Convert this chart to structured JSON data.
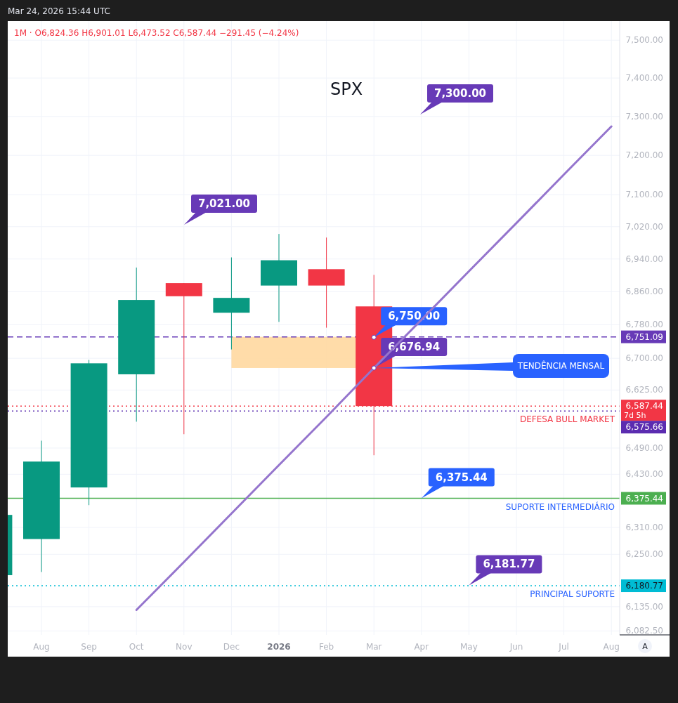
{
  "chart_data": {
    "type": "candlestick",
    "title": "SPX",
    "subtitle": "1M · O6,824.36 H6,901.01 L6,473.52 C6,587.44 −291.45 (−4.24%)",
    "categories": [
      null,
      "Aug",
      "Sep",
      "Oct",
      "Nov",
      "Dec",
      "2026",
      "Feb",
      "Mar",
      "Apr",
      "May",
      "Jun",
      "Jul",
      "Aug"
    ],
    "ohlc": [
      [
        6204,
        6427,
        6201,
        6338
      ],
      [
        6284,
        6507,
        6211,
        6459
      ],
      [
        6400,
        6696,
        6360,
        6688
      ],
      [
        6662,
        6919,
        6551,
        6840
      ],
      [
        6881,
        6881,
        6522,
        6849
      ],
      [
        6809,
        6944,
        6721,
        6845
      ],
      [
        6875,
        7002,
        6787,
        6937
      ],
      [
        6915,
        6993,
        6773,
        6875
      ],
      [
        6824.36,
        6901.01,
        6473.52,
        6587.44
      ],
      null,
      null,
      null,
      null,
      null
    ],
    "colors": [
      "#089981",
      "#089981",
      "#089981",
      "#089981",
      "#f23645",
      "#089981",
      "#089981",
      "#f23645",
      "#f23645",
      null,
      null,
      null,
      null,
      null
    ],
    "series": [
      {
        "type": "line",
        "color": "#9575cd",
        "values": [
          null,
          null,
          null,
          6128,
          6233,
          6341,
          6451,
          6562,
          6676.94,
          6792,
          6910,
          7029,
          7151,
          7274
        ]
      }
    ],
    "log": "y",
    "ylim": [
      6074,
      7551
    ],
    "yticks": [
      {
        "value": 7500,
        "label": "7,500.00"
      },
      {
        "value": 7400,
        "label": "7,400.00"
      },
      {
        "value": 7300,
        "label": "7,300.00"
      },
      {
        "value": 7200,
        "label": "7,200.00"
      },
      {
        "value": 7100,
        "label": "7,100.00"
      },
      {
        "value": 7020,
        "label": "7,020.00"
      },
      {
        "value": 6940,
        "label": "6,940.00"
      },
      {
        "value": 6860,
        "label": "6,860.00"
      },
      {
        "value": 6780,
        "label": "6,780.00"
      },
      {
        "value": 6700,
        "label": "6,700.00"
      },
      {
        "value": 6625,
        "label": "6,625.00"
      },
      {
        "value": 6490,
        "label": "6,490.00"
      },
      {
        "value": 6430,
        "label": "6,430.00"
      },
      {
        "value": 6310,
        "label": "6,310.00"
      },
      {
        "value": 6250,
        "label": "6,250.00"
      },
      {
        "value": 6135,
        "label": "6,135.00"
      },
      {
        "value": 6082.5,
        "label": "6,082.50"
      }
    ],
    "grid": true,
    "ref_lines": [
      {
        "axis": "y",
        "value": 6751.09,
        "label": "6,751.09",
        "color": "#673ab7",
        "line_style": "dashed"
      },
      {
        "axis": "y",
        "value": 6587.44,
        "label": "6,587.44",
        "color": "#f23645",
        "line_style": "dotted"
      },
      {
        "axis": "y",
        "value": 6575.66,
        "label": "6,575.66",
        "color": "#5b2cb0",
        "line_style": "dotted"
      },
      {
        "axis": "y",
        "value": 6375.44,
        "label": "6,375.44",
        "color": "#4caf50",
        "line_style": "solid"
      },
      {
        "axis": "y",
        "value": 6180.77,
        "label": "6,180.77",
        "color": "#00bcd4",
        "line_style": "dotted"
      }
    ],
    "bands": [
      {
        "axis": "y",
        "from": 6676.94,
        "to": 6751.09,
        "color": "#ffd8a0"
      }
    ],
    "annotations": [
      "Mar 24, 2026 15:44 UTC",
      "A",
      "7d 5h",
      "7,300.00",
      "7,021.00",
      {
        "text": "6,750.00",
        "x": "Mar",
        "y": 6750
      },
      {
        "text": "6,676.94",
        "x": "Mar",
        "y": 6676.94
      },
      {
        "text": "TENDÊNCIA MENSAL",
        "x": "Mar",
        "y": 6676.94
      },
      {
        "text": "6,375.44",
        "x": "Apr",
        "y": 6375.44
      },
      {
        "text": "6,181.77",
        "x": "May",
        "y": 6181.77
      },
      {
        "text": "DEFESA BULL MARKET",
        "y": 6575.66
      },
      {
        "text": "SUPORTE INTERMEDIÁRIO",
        "y": 6375.44
      },
      {
        "text": "PRINCIPAL SUPORTE",
        "y": 6180.77
      }
    ]
  }
}
